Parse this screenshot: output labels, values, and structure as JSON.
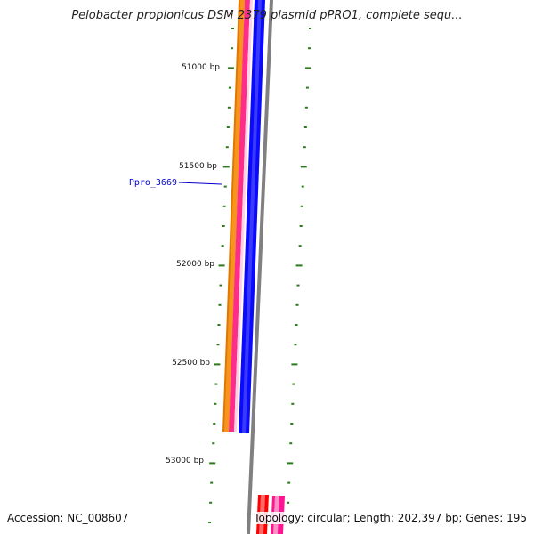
{
  "title": "Pelobacter propionicus DSM 2379 plasmid pPRO1, complete sequ...",
  "footer": {
    "accession_label": "Accession:",
    "accession_value": "NC_008607",
    "topology_label": "Topology:",
    "topology_value": "circular;",
    "length_label": "Length:",
    "length_value": "202,397 bp;",
    "genes_label": "Genes:",
    "genes_value": "195"
  },
  "scale_labels": [
    "51000 bp",
    "51500 bp",
    "52000 bp",
    "52500 bp",
    "53000 bp"
  ],
  "gene_label": "Ppro_3669",
  "colors": {
    "tick": "#2a7a1a",
    "backbone": "#808080",
    "gene_label": "#0000cc",
    "orange": "#f7941d",
    "dark_orange": "#e07800",
    "pink": "#ff2d8a",
    "blue": "#0a0aff",
    "red": "#ff0000",
    "magenta": "#ff1493"
  }
}
